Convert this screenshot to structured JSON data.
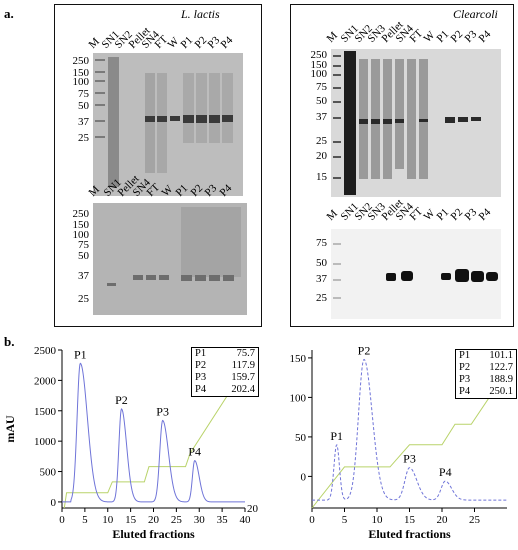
{
  "panel_a": {
    "label": "a.",
    "left": {
      "title": "L. lactis",
      "top_lanes": [
        "M",
        "SN1",
        "SN2",
        "Pellet",
        "SN4",
        "FT",
        "W",
        "P1",
        "P2",
        "P3",
        "P4"
      ],
      "top_mw": [
        "250",
        "150",
        "100",
        "75",
        "50",
        "37",
        "25"
      ],
      "bottom_lanes": [
        "M",
        "SN1",
        "Pellet",
        "SN4",
        "FT",
        "W",
        "P1",
        "P2",
        "P3",
        "P4"
      ],
      "bottom_mw": [
        "250",
        "150",
        "100",
        "75",
        "50",
        "37",
        "25"
      ]
    },
    "right": {
      "title": "Clearcoli",
      "top_lanes": [
        "M",
        "SN1",
        "SN2",
        "SN3",
        "Pellet",
        "SN4",
        "FT",
        "W",
        "P1",
        "P2",
        "P3",
        "P4"
      ],
      "top_mw": [
        "250",
        "150",
        "100",
        "75",
        "50",
        "37",
        "25",
        "20",
        "15"
      ],
      "bottom_lanes": [
        "M",
        "SN1",
        "SN2",
        "SN3",
        "Pellet",
        "SN4",
        "FT",
        "W",
        "P1",
        "P2",
        "P3",
        "P4"
      ],
      "bottom_mw": [
        "75",
        "50",
        "37",
        "25"
      ]
    }
  },
  "panel_b": {
    "label": "b."
  },
  "chart_data": [
    {
      "type": "line",
      "ylabel": "mAU",
      "xlabel": "Eluted fractions",
      "xlim": [
        0,
        40
      ],
      "ylim": [
        -100,
        2500
      ],
      "xticks": [
        "0",
        "5",
        "10",
        "15",
        "20",
        "25",
        "30",
        "35",
        "40"
      ],
      "yticks": [
        "0",
        "500",
        "1000",
        "1500",
        "2000",
        "2500"
      ],
      "right_tick": "20",
      "peaks": [
        {
          "label": "P1",
          "x": 4,
          "y": 2280
        },
        {
          "label": "P2",
          "x": 13,
          "y": 1530
        },
        {
          "label": "P3",
          "x": 22,
          "y": 1340
        },
        {
          "label": "P4",
          "x": 29,
          "y": 680
        }
      ],
      "legend": [
        {
          "name": "P1",
          "value": "75.7"
        },
        {
          "name": "P2",
          "value": "117.9"
        },
        {
          "name": "P3",
          "value": "159.7"
        },
        {
          "name": "P4",
          "value": "202.4"
        }
      ],
      "gradient_steps": [
        {
          "x": 0.5,
          "y": -100
        },
        {
          "x": 1,
          "y": 150
        },
        {
          "x": 10,
          "y": 150
        },
        {
          "x": 11,
          "y": 330
        },
        {
          "x": 18,
          "y": 330
        },
        {
          "x": 19,
          "y": 580
        },
        {
          "x": 27,
          "y": 580
        },
        {
          "x": 28,
          "y": 800
        },
        {
          "x": 40,
          "y": 2200
        }
      ]
    },
    {
      "type": "line",
      "xlabel": "Eluted fractions",
      "xlim": [
        0,
        30
      ],
      "ylim": [
        -40,
        160
      ],
      "xticks": [
        "0",
        "5",
        "10",
        "15",
        "20",
        "25"
      ],
      "yticks": [
        "0",
        "50",
        "100",
        "150"
      ],
      "peaks": [
        {
          "label": "P1",
          "x": 3.8,
          "y": 40
        },
        {
          "label": "P2",
          "x": 8,
          "y": 148
        },
        {
          "label": "P3",
          "x": 15,
          "y": 11
        },
        {
          "label": "P4",
          "x": 20.5,
          "y": -6
        }
      ],
      "legend": [
        {
          "name": "P1",
          "value": "101.1"
        },
        {
          "name": "P2",
          "value": "122.7"
        },
        {
          "name": "P3",
          "value": "188.9"
        },
        {
          "name": "P4",
          "value": "250.1"
        }
      ],
      "gradient_steps": [
        {
          "x": 0,
          "y": -40
        },
        {
          "x": 5,
          "y": 12
        },
        {
          "x": 12,
          "y": 12
        },
        {
          "x": 15,
          "y": 40
        },
        {
          "x": 20,
          "y": 40
        },
        {
          "x": 22,
          "y": 66
        },
        {
          "x": 24.5,
          "y": 66
        },
        {
          "x": 28.5,
          "y": 115
        }
      ]
    }
  ]
}
